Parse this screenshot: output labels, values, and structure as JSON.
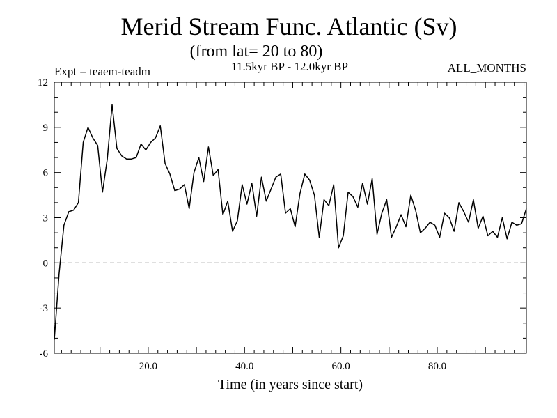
{
  "chart_data": {
    "type": "line",
    "title": "Merid Stream Func. Atlantic (Sv)",
    "subtitle": "(from lat= 20 to 80)",
    "experiment": "Expt = teaem-teadm",
    "period": "11.5kyr BP - 12.0kyr BP",
    "months": "ALL_MONTHS",
    "xlabel": "Time (in years since start)",
    "ylabel": "",
    "xlim": [
      0.5,
      98.5
    ],
    "ylim": [
      -6,
      12
    ],
    "xticks": [
      20,
      40,
      60,
      80
    ],
    "xtick_labels": [
      "20.0",
      "40.0",
      "60.0",
      "80.0"
    ],
    "yticks": [
      -6,
      -3,
      0,
      3,
      6,
      9,
      12
    ],
    "ytick_labels": [
      "-6",
      "-3",
      "0",
      "3",
      "6",
      "9",
      "12"
    ],
    "reference_line": {
      "y": 0,
      "style": "dashed"
    },
    "series": [
      {
        "name": "Merid Stream Func. Atlantic",
        "x": [
          0.5,
          1.5,
          2.5,
          3.5,
          4.5,
          5.5,
          6.5,
          7.5,
          8.5,
          9.5,
          10.5,
          11.5,
          12.5,
          13.5,
          14.5,
          15.5,
          16.5,
          17.5,
          18.5,
          19.5,
          20.5,
          21.5,
          22.5,
          23.5,
          24.5,
          25.5,
          26.5,
          27.5,
          28.5,
          29.5,
          30.5,
          31.5,
          32.5,
          33.5,
          34.5,
          35.5,
          36.5,
          37.5,
          38.5,
          39.5,
          40.5,
          41.5,
          42.5,
          43.5,
          44.5,
          45.5,
          46.5,
          47.5,
          48.5,
          49.5,
          50.5,
          51.5,
          52.5,
          53.5,
          54.5,
          55.5,
          56.5,
          57.5,
          58.5,
          59.5,
          60.5,
          61.5,
          62.5,
          63.5,
          64.5,
          65.5,
          66.5,
          67.5,
          68.5,
          69.5,
          70.5,
          71.5,
          72.5,
          73.5,
          74.5,
          75.5,
          76.5,
          77.5,
          78.5,
          79.5,
          80.5,
          81.5,
          82.5,
          83.5,
          84.5,
          85.5,
          86.5,
          87.5,
          88.5,
          89.5,
          90.5,
          91.5,
          92.5,
          93.5,
          94.5,
          95.5,
          96.5,
          97.5,
          98.5
        ],
        "values": [
          -5.1,
          -0.7,
          2.5,
          3.4,
          3.5,
          4.0,
          8.0,
          9.0,
          8.3,
          7.8,
          4.7,
          6.9,
          10.5,
          7.6,
          7.1,
          6.9,
          6.9,
          7.0,
          7.9,
          7.5,
          8.0,
          8.3,
          9.1,
          6.6,
          5.9,
          4.8,
          4.9,
          5.2,
          3.6,
          6.0,
          7.0,
          5.4,
          7.7,
          5.8,
          6.2,
          3.2,
          4.1,
          2.1,
          2.8,
          5.2,
          3.9,
          5.3,
          3.1,
          5.7,
          4.1,
          4.9,
          5.7,
          5.9,
          3.3,
          3.6,
          2.4,
          4.6,
          5.9,
          5.5,
          4.5,
          1.7,
          4.2,
          3.8,
          5.2,
          1.0,
          1.8,
          4.7,
          4.4,
          3.7,
          5.3,
          3.9,
          5.6,
          1.9,
          3.3,
          4.2,
          1.7,
          2.4,
          3.2,
          2.4,
          4.5,
          3.5,
          2.0,
          2.3,
          2.7,
          2.5,
          1.7,
          3.3,
          3.0,
          2.1,
          4.0,
          3.4,
          2.7,
          4.2,
          2.3,
          3.1,
          1.8,
          2.1,
          1.7,
          3.0,
          1.6,
          2.7,
          2.5,
          2.6,
          3.6
        ]
      }
    ]
  }
}
